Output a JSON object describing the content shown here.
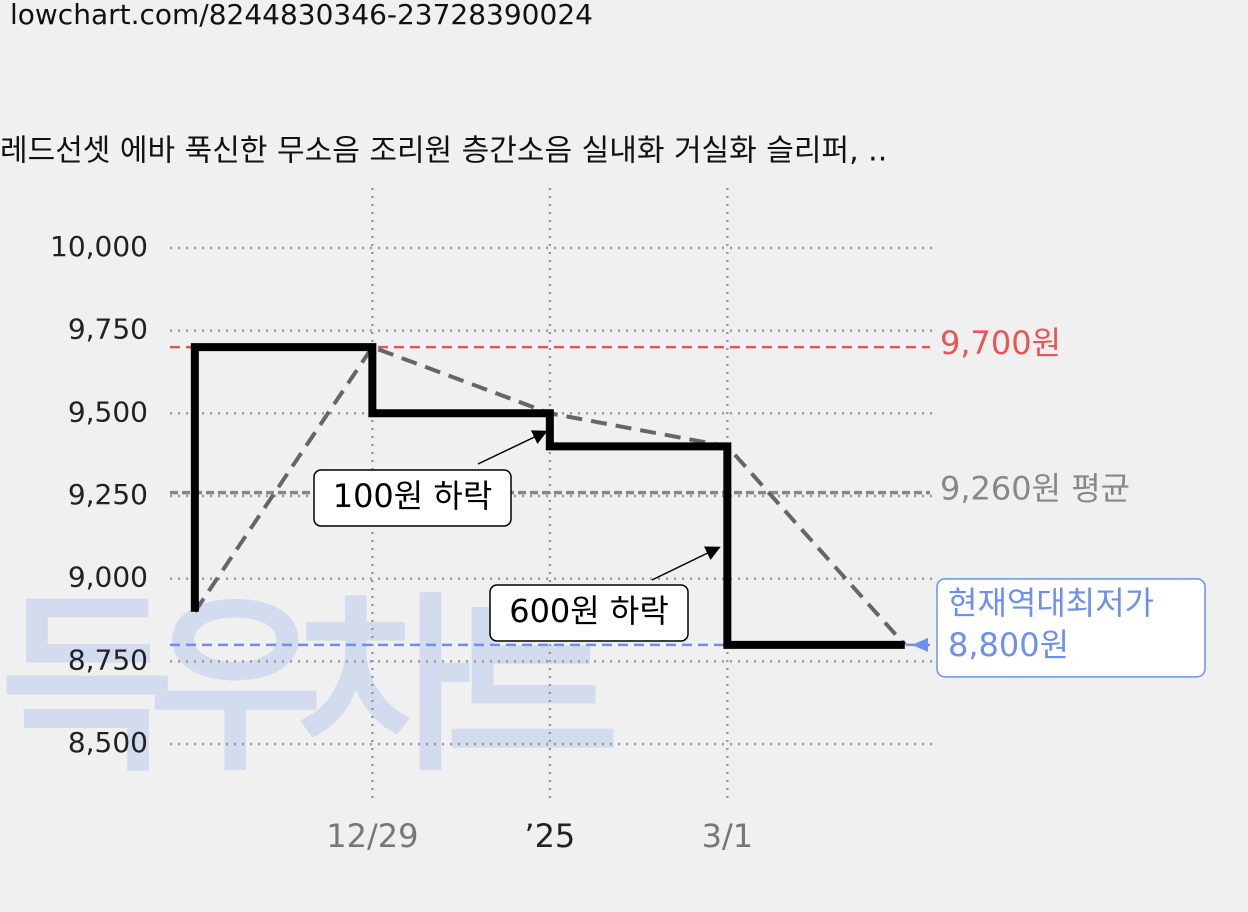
{
  "url": "lowchart.com/8244830346-23728390024",
  "watermark": "득우차트",
  "chart_data": {
    "type": "line",
    "title": "레드선셋 에바 푹신한 무소음 조리원 층간소음 실내화 거실화 슬리퍼, ..",
    "x": [
      0,
      1,
      2,
      3,
      4
    ],
    "series": [
      {
        "color": "#000000",
        "style": "step",
        "values": [
          8900,
          9700,
          9500,
          9400,
          8800
        ]
      },
      {
        "color": "#666666",
        "style": "dashed",
        "values": [
          8900,
          9700,
          9500,
          9400,
          8800
        ]
      }
    ],
    "xlim": [
      -0.14,
      4.17
    ],
    "xticks": [
      {
        "value": 1,
        "label": "12/29"
      },
      {
        "value": 2,
        "label": "’25"
      },
      {
        "value": 3,
        "label": "3/1"
      }
    ],
    "ylim": [
      8331,
      10181
    ],
    "yticks": [
      {
        "value": 8500,
        "label": "8,500"
      },
      {
        "value": 8750,
        "label": "8,750"
      },
      {
        "value": 9000,
        "label": "9,000"
      },
      {
        "value": 9250,
        "label": "9,250"
      },
      {
        "value": 9500,
        "label": "9,500"
      },
      {
        "value": 9750,
        "label": "9,750"
      },
      {
        "value": 10000,
        "label": "10,000"
      }
    ],
    "grid": true,
    "reference_lines": [
      {
        "value": 9700,
        "label": "9,700원",
        "color": "#e85555"
      },
      {
        "value": 9260,
        "label": "9,260원 평균",
        "color": "#888888"
      },
      {
        "value": 8800,
        "label": [
          "현재역대최저가",
          "8,800원"
        ],
        "color": "#6d8ff0"
      }
    ],
    "annotations": [
      {
        "text": "100원 하락"
      },
      {
        "text": "600원 하락"
      }
    ]
  }
}
